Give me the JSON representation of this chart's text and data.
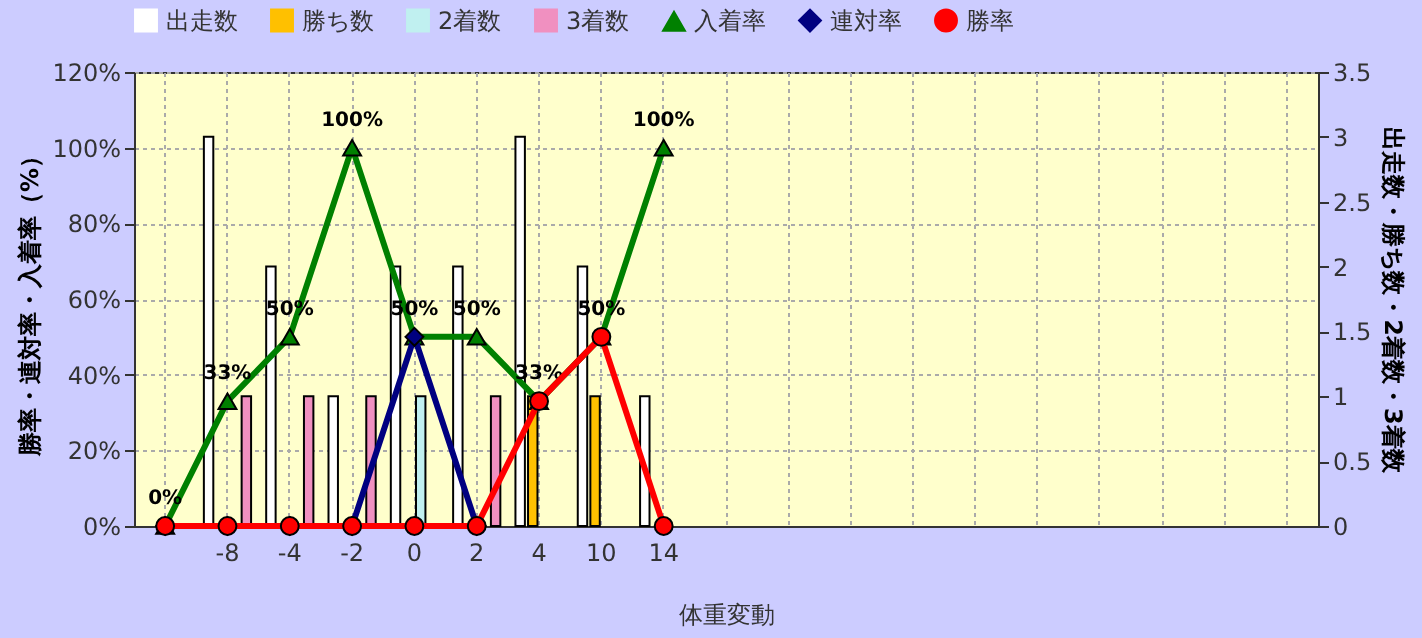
{
  "chart_data": {
    "type": "bar",
    "xlabel": "体重変動",
    "ylabel": "勝率・連対率・入着率（%）",
    "y2label": "出走数・勝ち数・2着数・3着数",
    "categories": [
      null,
      "-8",
      "-4",
      "-2",
      "0",
      "2",
      "4",
      "10",
      "14",
      null,
      null,
      null,
      null,
      null,
      null,
      null,
      null,
      null,
      null
    ],
    "series": [
      {
        "name": "出走数",
        "axis": "y2",
        "color": "#ffffff",
        "values": [
          null,
          3,
          2,
          1,
          2,
          2,
          3,
          2,
          1,
          null,
          null,
          null,
          null,
          null,
          null,
          null,
          null,
          null,
          null
        ]
      },
      {
        "name": "勝ち数",
        "axis": "y2",
        "color": "#ffc000",
        "values": [
          null,
          0,
          0,
          0,
          0,
          0,
          1,
          1,
          0,
          null,
          null,
          null,
          null,
          null,
          null,
          null,
          null,
          null,
          null
        ]
      },
      {
        "name": "2着数",
        "axis": "y2",
        "color": "#c0f0f0",
        "values": [
          null,
          0,
          0,
          0,
          1,
          0,
          0,
          0,
          0,
          null,
          null,
          null,
          null,
          null,
          null,
          null,
          null,
          null,
          null
        ]
      },
      {
        "name": "3着数",
        "axis": "y2",
        "color": "#f090c0",
        "values": [
          null,
          1,
          1,
          1,
          0,
          1,
          0,
          0,
          0,
          null,
          null,
          null,
          null,
          null,
          null,
          null,
          null,
          null,
          null
        ]
      },
      {
        "name": "入着率",
        "type": "line",
        "marker": "triangle",
        "color": "#008000",
        "values": [
          0,
          33,
          50,
          100,
          50,
          50,
          33,
          50,
          100,
          null,
          null,
          null,
          null,
          null,
          null,
          null,
          null,
          null,
          null
        ],
        "value_labels": [
          "0%",
          "33%",
          "50%",
          "100%",
          "50%",
          "50%",
          "33%",
          "50%",
          "100%",
          null,
          null,
          null,
          null,
          null,
          null,
          null,
          null,
          null,
          null
        ]
      },
      {
        "name": "連対率",
        "type": "line",
        "marker": "diamond",
        "color": "#000080",
        "values": [
          0,
          0,
          0,
          0,
          50,
          0,
          null,
          null,
          null,
          null,
          null,
          null,
          null,
          null,
          null,
          null,
          null,
          null,
          null
        ]
      },
      {
        "name": "勝率",
        "type": "line",
        "marker": "circle",
        "color": "#ff0000",
        "values": [
          0,
          0,
          0,
          0,
          0,
          0,
          33,
          50,
          0,
          null,
          null,
          null,
          null,
          null,
          null,
          null,
          null,
          null,
          null
        ]
      }
    ],
    "ylim": [
      0,
      120
    ],
    "yticks": [
      {
        "value": 0,
        "label": "0%"
      },
      {
        "value": 20,
        "label": "20%"
      },
      {
        "value": 40,
        "label": "40%"
      },
      {
        "value": 60,
        "label": "60%"
      },
      {
        "value": 80,
        "label": "80%"
      },
      {
        "value": 100,
        "label": "100%"
      },
      {
        "value": 120,
        "label": "120%"
      }
    ],
    "y2lim": [
      0,
      3.5
    ],
    "y2ticks": [
      0,
      0.5,
      1,
      1.5,
      2,
      2.5,
      3,
      3.5
    ],
    "grid": true,
    "legend": "top"
  }
}
